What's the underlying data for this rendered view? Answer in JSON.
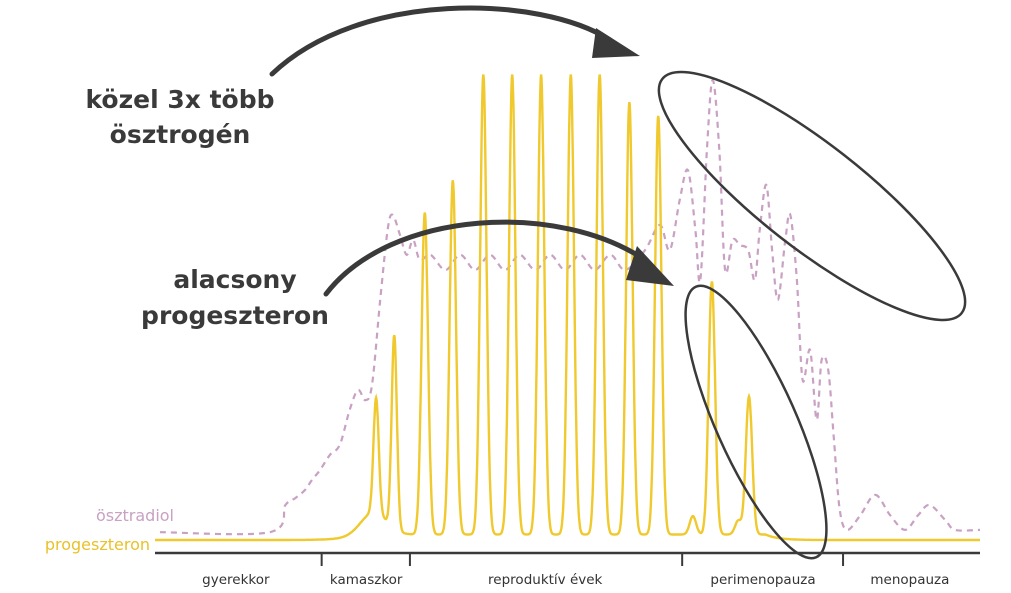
{
  "chart_data": {
    "type": "line",
    "title": "",
    "xlabel": "",
    "ylabel": "",
    "xlim": [
      0,
      100
    ],
    "ylim": [
      0,
      100
    ],
    "phases": [
      {
        "label": "gyerekkor",
        "center": 9.8
      },
      {
        "label": "kamaszkor",
        "center": 25.6
      },
      {
        "label": "reproduktív évek",
        "center": 47.3
      },
      {
        "label": "perimenopauza",
        "center": 73.7
      },
      {
        "label": "menopauza",
        "center": 91.5
      }
    ],
    "phase_boundaries": [
      20.2,
      30.9,
      63.9,
      83.4
    ],
    "series": [
      {
        "name": "ösztradiol",
        "color": "#c8a1c3",
        "style": "dashed",
        "points": [
          [
            0.6,
            1.7
          ],
          [
            13.9,
            1.7
          ],
          [
            15.8,
            7.6
          ],
          [
            17,
            9.1
          ],
          [
            18.2,
            10.9
          ],
          [
            19,
            13
          ],
          [
            20,
            15.2
          ],
          [
            21.2,
            18.5
          ],
          [
            22.4,
            20.7
          ],
          [
            23.6,
            28.3
          ],
          [
            24.6,
            32.6
          ],
          [
            25.5,
            30.4
          ],
          [
            26.3,
            33.7
          ],
          [
            27.3,
            52.2
          ],
          [
            28.2,
            67.4
          ],
          [
            28.8,
            70.7
          ],
          [
            29.7,
            66.3
          ],
          [
            30.5,
            62
          ],
          [
            31.3,
            65.2
          ],
          [
            32.1,
            60.9
          ],
          [
            33.4,
            62
          ],
          [
            35.2,
            58.7
          ],
          [
            37,
            62
          ],
          [
            38.8,
            58.7
          ],
          [
            40.6,
            62
          ],
          [
            42.4,
            58.7
          ],
          [
            44.2,
            62
          ],
          [
            46.1,
            58.7
          ],
          [
            47.9,
            62
          ],
          [
            49.7,
            58.7
          ],
          [
            51.5,
            62
          ],
          [
            53.3,
            58.7
          ],
          [
            55.2,
            62
          ],
          [
            57,
            58.7
          ],
          [
            59.4,
            63
          ],
          [
            61.2,
            68.5
          ],
          [
            62.4,
            63
          ],
          [
            63.6,
            73.9
          ],
          [
            64.6,
            80.4
          ],
          [
            65.5,
            67.4
          ],
          [
            66.1,
            56.5
          ],
          [
            66.9,
            84.8
          ],
          [
            67.6,
            100
          ],
          [
            68.4,
            84.8
          ],
          [
            69.1,
            58.7
          ],
          [
            70,
            65.2
          ],
          [
            70.9,
            64.1
          ],
          [
            71.9,
            63
          ],
          [
            72.7,
            56.5
          ],
          [
            73.3,
            67.4
          ],
          [
            74.1,
            77.2
          ],
          [
            74.8,
            63
          ],
          [
            75.5,
            52.2
          ],
          [
            76.4,
            65.2
          ],
          [
            77,
            70.7
          ],
          [
            77.8,
            56.5
          ],
          [
            78.5,
            34.8
          ],
          [
            79.4,
            41.3
          ],
          [
            80.2,
            26.1
          ],
          [
            80.8,
            39.1
          ],
          [
            81.6,
            37
          ],
          [
            82.3,
            21.7
          ],
          [
            83,
            6.5
          ],
          [
            83.9,
            2.2
          ],
          [
            85.5,
            5.4
          ],
          [
            87.3,
            9.8
          ],
          [
            89.1,
            5.4
          ],
          [
            90.9,
            2.2
          ],
          [
            92.5,
            5.4
          ],
          [
            93.9,
            7.6
          ],
          [
            95.8,
            4.3
          ],
          [
            97,
            2.2
          ],
          [
            100,
            2.2
          ]
        ]
      },
      {
        "name": "progeszteron",
        "color": "#f0c92e",
        "style": "solid",
        "peaks": [
          [
            26.8,
            25
          ],
          [
            29,
            42
          ],
          [
            32.7,
            70
          ],
          [
            36.1,
            77
          ],
          [
            39.8,
            100
          ],
          [
            43.3,
            100
          ],
          [
            46.8,
            100
          ],
          [
            50.4,
            100
          ],
          [
            53.9,
            100
          ],
          [
            57.5,
            94
          ],
          [
            61,
            91
          ],
          [
            65.2,
            4
          ],
          [
            67.5,
            55
          ],
          [
            70.7,
            3
          ],
          [
            72,
            30
          ]
        ]
      }
    ],
    "annotations": [
      {
        "lines": [
          "közel 3x több",
          "ösztrogén"
        ],
        "target": "perimenopausal estradiol peaks"
      },
      {
        "lines": [
          "alacsony",
          "progeszteron"
        ],
        "target": "perimenopausal progesterone peaks"
      }
    ],
    "grid": false,
    "legend": "left"
  }
}
